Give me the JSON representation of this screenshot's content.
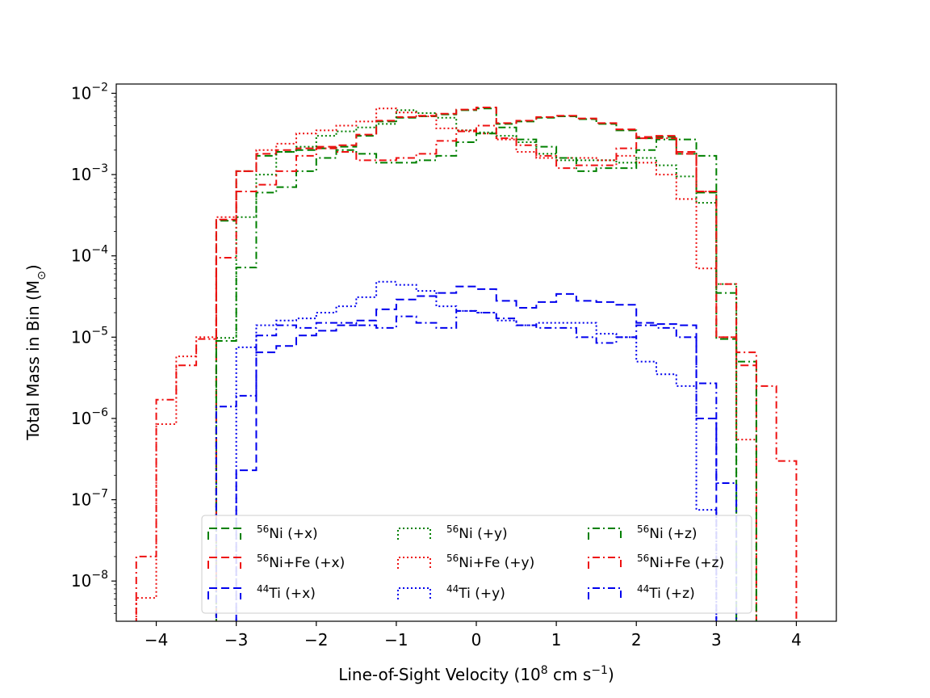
{
  "chart_data": {
    "type": "histogram-step",
    "title": "",
    "xlabel": {
      "main": "Line-of-Sight Velocity (10",
      "exp": "8",
      "mid": " cm s",
      "exp2": "−1",
      "end": ")"
    },
    "ylabel": {
      "main": "Total Mass in Bin (M",
      "sub": "⊙",
      "end": ")"
    },
    "yscale": "log",
    "xlim": [
      -4.5,
      4.5
    ],
    "ylim": [
      3.2e-09,
      0.013
    ],
    "xticks": [
      -4,
      -3,
      -2,
      -1,
      0,
      1,
      2,
      3,
      4
    ],
    "xtick_labels": [
      "−4",
      "−3",
      "−2",
      "−1",
      "0",
      "1",
      "2",
      "3",
      "4"
    ],
    "yticks": [
      -8,
      -7,
      -6,
      -5,
      -4,
      -3,
      -2
    ],
    "ytick_base": "10",
    "ytick_exps": [
      "−8",
      "−7",
      "−6",
      "−5",
      "−4",
      "−3",
      "−2"
    ],
    "legend_position": "lower center",
    "bin_edges": [
      -4.25,
      -4.0,
      -3.75,
      -3.5,
      -3.25,
      -3.0,
      -2.75,
      -2.5,
      -2.25,
      -2.0,
      -1.75,
      -1.5,
      -1.25,
      -1.0,
      -0.75,
      -0.5,
      -0.25,
      0.0,
      0.25,
      0.5,
      0.75,
      1.0,
      1.25,
      1.5,
      1.75,
      2.0,
      2.25,
      2.5,
      2.75,
      3.0,
      3.25,
      3.5,
      3.75,
      4.0,
      4.25
    ],
    "series": [
      {
        "name": "Ni56 +x",
        "iso": "56",
        "label": "Ni (+x)",
        "color": "#008000",
        "dash": "10,5",
        "values": [
          0,
          0,
          0,
          0,
          0.00027,
          0.0011,
          0.0017,
          0.0019,
          0.002,
          0.0021,
          0.0022,
          0.003,
          0.0045,
          0.005,
          0.0052,
          0.0055,
          0.0062,
          0.0065,
          0.0042,
          0.0045,
          0.005,
          0.0052,
          0.0048,
          0.0042,
          0.0035,
          0.0028,
          0.0029,
          0.0018,
          0.0006,
          9.5e-06,
          0,
          0,
          0,
          0
        ]
      },
      {
        "name": "NiFe +x",
        "iso": "56",
        "label": "Ni+Fe (+x)",
        "color": "#ee1111",
        "dash": "10,5",
        "values": [
          0,
          0,
          0,
          0,
          0.00028,
          0.0011,
          0.0018,
          0.002,
          0.0021,
          0.0022,
          0.0023,
          0.0031,
          0.0046,
          0.0051,
          0.0053,
          0.0056,
          0.0063,
          0.0067,
          0.0043,
          0.0046,
          0.0051,
          0.0053,
          0.0049,
          0.0043,
          0.0036,
          0.0029,
          0.003,
          0.0019,
          0.00062,
          1e-05,
          4.5e-06,
          0,
          0,
          0
        ]
      },
      {
        "name": "Ti44 +x",
        "iso": "44",
        "label": "Ti (+x)",
        "color": "#0000ee",
        "dash": "10,5",
        "values": [
          0,
          0,
          0,
          0,
          0,
          2.3e-07,
          6.5e-06,
          7.8e-06,
          1.05e-05,
          1.2e-05,
          1.4e-05,
          1.6e-05,
          2.2e-05,
          2.9e-05,
          3.2e-05,
          3.5e-05,
          4.2e-05,
          3.9e-05,
          2.8e-05,
          2.3e-05,
          2.7e-05,
          3.4e-05,
          2.8e-05,
          2.7e-05,
          2.5e-05,
          1.5e-05,
          1.45e-05,
          1.4e-05,
          1e-06,
          0,
          0,
          0,
          0,
          0
        ]
      },
      {
        "name": "Ni56 +y",
        "iso": "56",
        "label": "Ni (+y)",
        "color": "#008000",
        "dash": "2,3",
        "values": [
          0,
          0,
          0,
          0,
          9.8e-06,
          0.0003,
          0.001,
          0.0019,
          0.0022,
          0.003,
          0.0034,
          0.0038,
          0.0042,
          0.0062,
          0.0057,
          0.005,
          0.0035,
          0.0033,
          0.003,
          0.0025,
          0.0018,
          0.0015,
          0.0015,
          0.0015,
          0.0014,
          0.0016,
          0.0013,
          0.00095,
          0.00045,
          4.5e-05,
          0,
          0,
          0,
          0
        ]
      },
      {
        "name": "NiFe +y",
        "iso": "56",
        "label": "Ni+Fe (+y)",
        "color": "#ee1111",
        "dash": "2,3",
        "values": [
          6.2e-09,
          8.5e-07,
          5.8e-06,
          1e-05,
          0.0003,
          0.0011,
          0.002,
          0.0024,
          0.0032,
          0.0035,
          0.004,
          0.0045,
          0.0065,
          0.0058,
          0.0052,
          0.0037,
          0.0035,
          0.0032,
          0.0027,
          0.0019,
          0.0016,
          0.0016,
          0.0016,
          0.0015,
          0.0017,
          0.0014,
          0.001,
          0.0005,
          7e-05,
          1e-05,
          5.5e-07,
          0,
          0,
          0
        ]
      },
      {
        "name": "Ti44 +y",
        "iso": "44",
        "label": "Ti (+y)",
        "color": "#0000ee",
        "dash": "2,3",
        "values": [
          0,
          0,
          0,
          0,
          0,
          7.5e-06,
          1.4e-05,
          1.6e-05,
          1.7e-05,
          2e-05,
          2.4e-05,
          3.1e-05,
          4.8e-05,
          4.4e-05,
          3.7e-05,
          2.4e-05,
          2.1e-05,
          2e-05,
          1.6e-05,
          1.4e-05,
          1.5e-05,
          1.5e-05,
          1.5e-05,
          1.1e-05,
          1e-05,
          5e-06,
          3.5e-06,
          2.5e-06,
          7.5e-08,
          0,
          0,
          0,
          0,
          0
        ]
      },
      {
        "name": "Ni56 +z",
        "iso": "56",
        "label": "Ni (+z)",
        "color": "#008000",
        "dash": "9,4,2,4",
        "values": [
          0,
          0,
          0,
          0,
          9e-06,
          7.2e-05,
          0.0006,
          0.0007,
          0.0011,
          0.0016,
          0.002,
          0.0018,
          0.0014,
          0.0014,
          0.0015,
          0.0017,
          0.0025,
          0.0032,
          0.0038,
          0.0027,
          0.0022,
          0.0016,
          0.0011,
          0.0012,
          0.0012,
          0.002,
          0.0027,
          0.0027,
          0.0017,
          3.5e-05,
          5e-06,
          0,
          0,
          0
        ]
      },
      {
        "name": "NiFe +z",
        "iso": "56",
        "label": "Ni+Fe (+z)",
        "color": "#ee1111",
        "dash": "9,4,2,4",
        "values": [
          2e-08,
          1.7e-06,
          4.5e-06,
          9.5e-06,
          9.5e-05,
          0.00062,
          0.00075,
          0.0011,
          0.0017,
          0.0021,
          0.0019,
          0.0015,
          0.0015,
          0.0016,
          0.0018,
          0.0026,
          0.0034,
          0.004,
          0.0028,
          0.0023,
          0.0017,
          0.0012,
          0.0013,
          0.0013,
          0.0021,
          0.0028,
          0.0028,
          0.0018,
          0.00062,
          4.5e-05,
          6.5e-06,
          2.5e-06,
          3e-07,
          0
        ]
      },
      {
        "name": "Ti44 +z",
        "iso": "44",
        "label": "Ti (+z)",
        "color": "#0000ee",
        "dash": "9,4,2,4",
        "values": [
          0,
          0,
          0,
          0,
          1.4e-06,
          1.9e-06,
          1.05e-05,
          1.4e-05,
          1.3e-05,
          1.5e-05,
          1.5e-05,
          1.4e-05,
          1.3e-05,
          1.8e-05,
          1.5e-05,
          1.3e-05,
          2.1e-05,
          2e-05,
          1.7e-05,
          1.4e-05,
          1.3e-05,
          1.3e-05,
          1e-05,
          8.5e-06,
          1e-05,
          1.4e-05,
          1.3e-05,
          1e-05,
          2.7e-06,
          1.6e-07,
          0,
          0,
          0,
          0
        ]
      }
    ]
  }
}
